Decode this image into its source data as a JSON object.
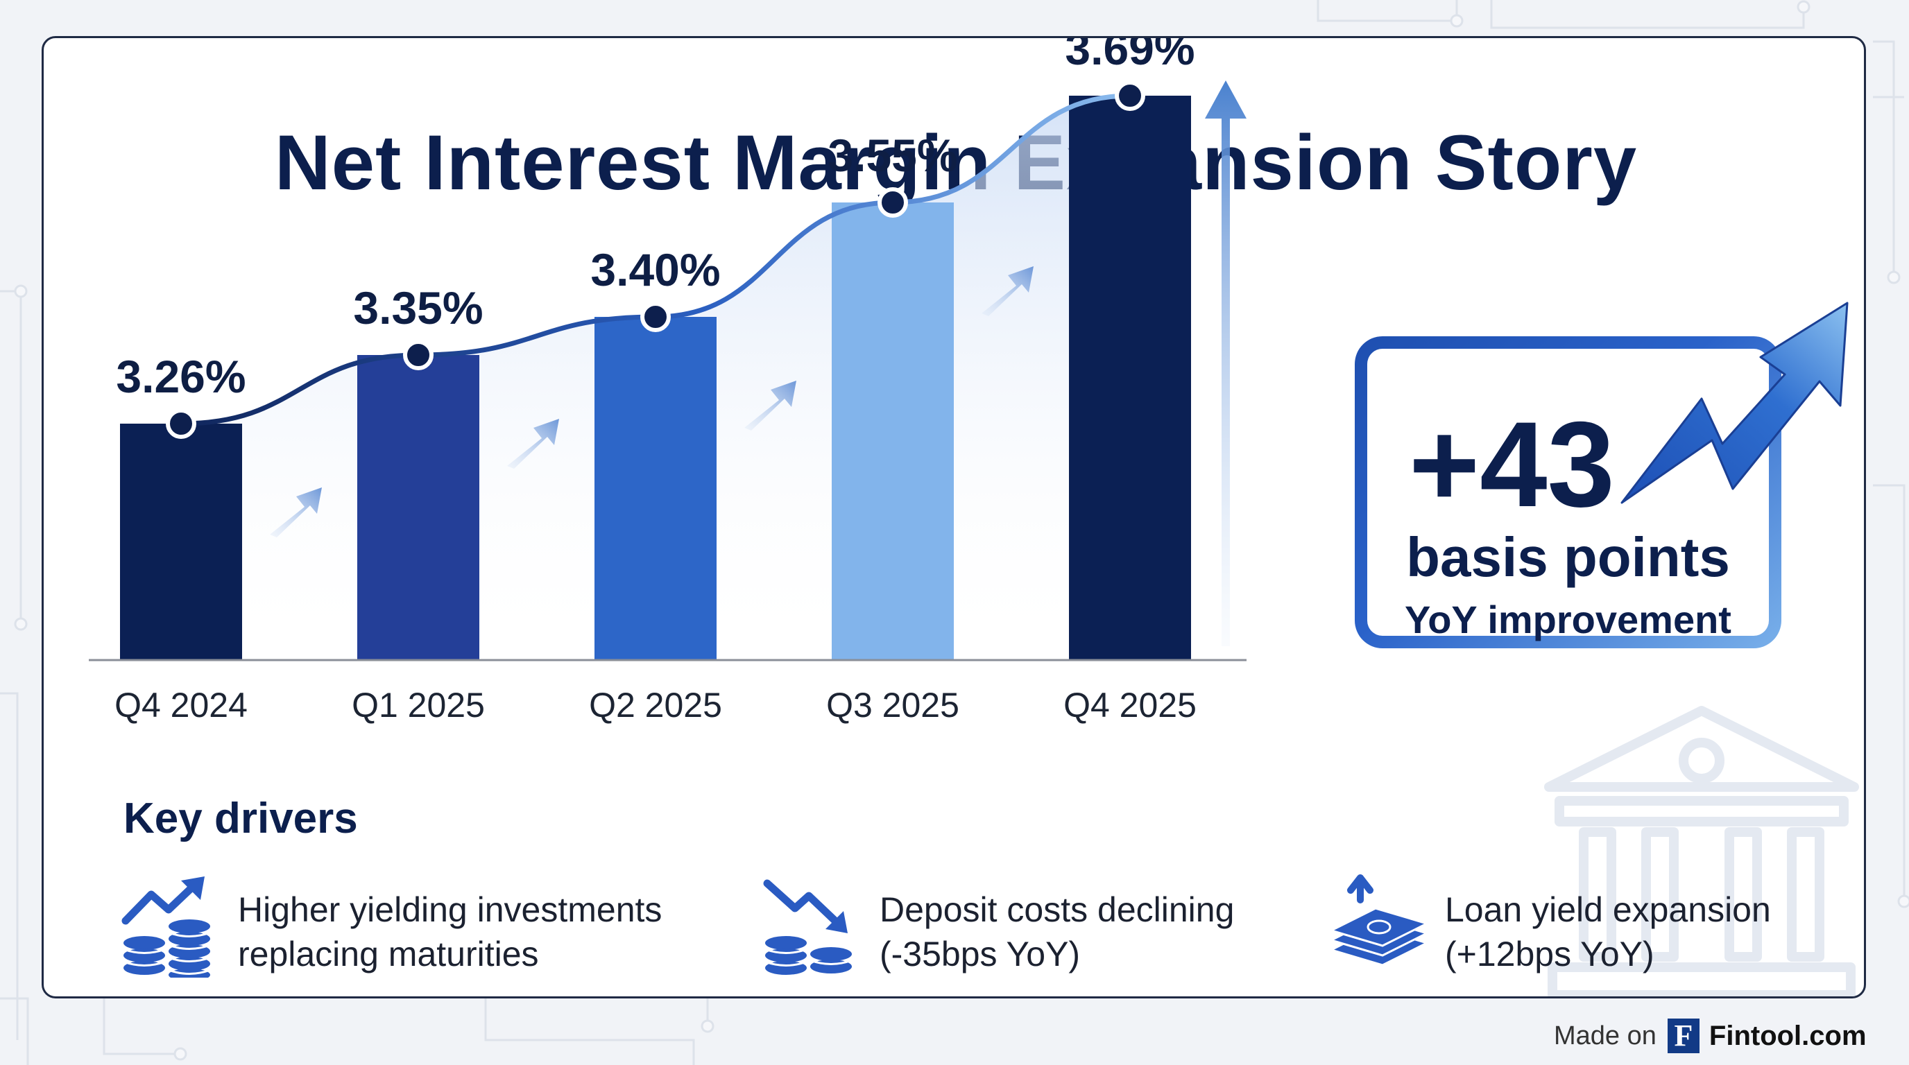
{
  "title": "Net Interest Margin Expansion Story",
  "chart_data": {
    "type": "bar",
    "title": "Net Interest Margin Expansion Story",
    "categories": [
      "Q4 2024",
      "Q1 2025",
      "Q2 2025",
      "Q3 2025",
      "Q4 2025"
    ],
    "values": [
      3.26,
      3.35,
      3.4,
      3.55,
      3.69
    ],
    "value_labels": [
      "3.26%",
      "3.35%",
      "3.40%",
      "3.55%",
      "3.69%"
    ],
    "bar_colors": [
      "#0b2054",
      "#243f98",
      "#2d66c8",
      "#82b4eb",
      "#0b2054"
    ],
    "overlay": "line",
    "ylim": [
      2.95,
      3.75
    ],
    "xlabel": "",
    "ylabel": ""
  },
  "callout": {
    "number": "+43",
    "unit": "basis points",
    "subtitle": "YoY improvement"
  },
  "drivers": {
    "heading": "Key drivers",
    "items": [
      {
        "line1": "Higher yielding investments",
        "line2": "replacing maturities",
        "icon": "chart-up-coins-icon"
      },
      {
        "line1": "Deposit costs declining",
        "line2": "(-35bps YoY)",
        "icon": "chart-down-coins-icon"
      },
      {
        "line1": "Loan yield expansion",
        "line2": "(+12bps YoY)",
        "icon": "cash-stack-up-icon"
      }
    ]
  },
  "footer": {
    "made_on": "Made on",
    "logo_letter": "F",
    "brand": "Fintool.com"
  },
  "colors": {
    "navy": "#0c1f4d",
    "accent_blue": "#2d66c8",
    "light_blue": "#82b4eb"
  }
}
